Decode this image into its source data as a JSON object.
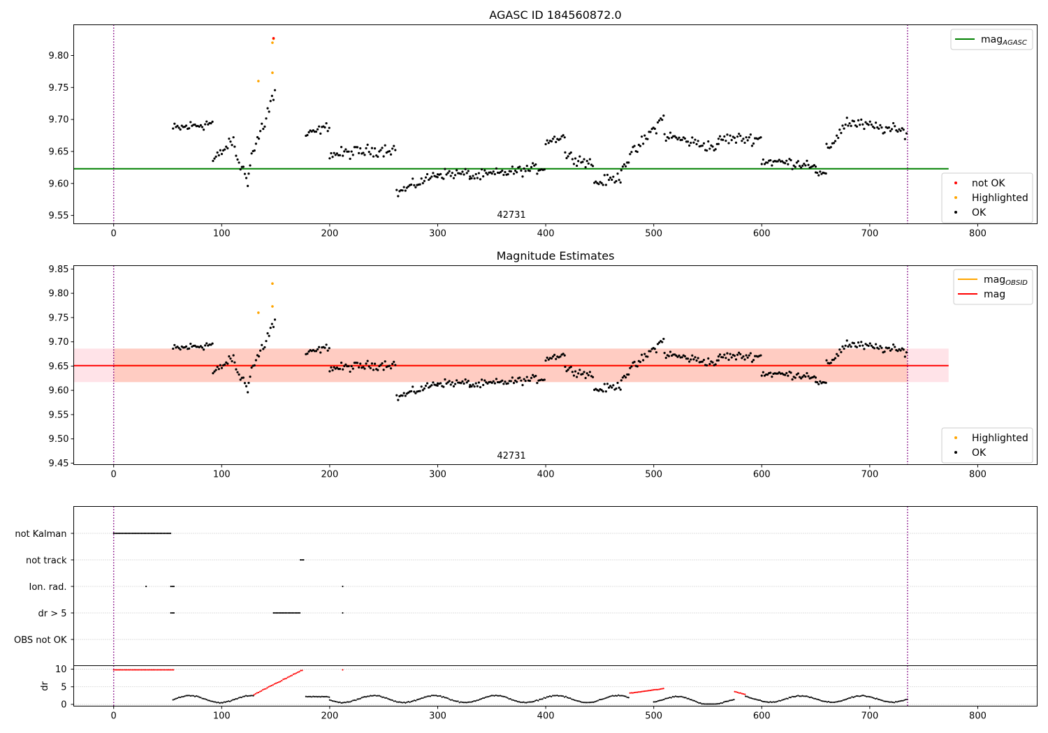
{
  "chart_data": [
    {
      "type": "scatter",
      "title": "AGASC ID 184560872.0",
      "xlim": [
        -37,
        855
      ],
      "ylim": [
        9.537,
        9.848
      ],
      "xticks": [
        0,
        100,
        200,
        300,
        400,
        500,
        600,
        700,
        800
      ],
      "yticks": [
        9.55,
        9.6,
        9.65,
        9.7,
        9.75,
        9.8
      ],
      "obsid_boundaries": [
        0,
        735
      ],
      "obsid_label": {
        "text": "42731",
        "x": 367
      },
      "reference_line": {
        "name": "mag_AGASC",
        "y": 9.623,
        "x": [
          -37,
          773
        ],
        "color": "#008000"
      },
      "legend_top": [
        {
          "label": "mag",
          "subscript": "AGASC",
          "color": "#008000",
          "kind": "line"
        }
      ],
      "legend_bottom": [
        {
          "label": "not OK",
          "color": "#ff0000",
          "kind": "dot"
        },
        {
          "label": "Highlighted",
          "color": "#ffa500",
          "kind": "dot"
        },
        {
          "label": "OK",
          "color": "#000000",
          "kind": "dot"
        }
      ],
      "highlighted_points": [
        [
          134,
          9.76
        ],
        [
          147,
          9.82
        ],
        [
          147,
          9.773
        ],
        [
          148,
          9.826
        ]
      ],
      "not_ok_points": [
        [
          148,
          9.827
        ]
      ],
      "ok_series_segments": [
        {
          "x_start": 55,
          "x_end": 92,
          "y_start": 9.685,
          "y_end": 9.695,
          "noise": 0.014
        },
        {
          "x_start": 92,
          "x_end": 112,
          "y_start": 9.635,
          "y_end": 9.67,
          "noise": 0.012
        },
        {
          "x_start": 112,
          "x_end": 125,
          "y_start": 9.65,
          "y_end": 9.6,
          "noise": 0.02
        },
        {
          "x_start": 125,
          "x_end": 150,
          "y_start": 9.63,
          "y_end": 9.745,
          "noise": 0.025
        },
        {
          "x_start": 178,
          "x_end": 200,
          "y_start": 9.675,
          "y_end": 9.69,
          "noise": 0.01
        },
        {
          "x_start": 200,
          "x_end": 262,
          "y_start": 9.645,
          "y_end": 9.655,
          "noise": 0.014
        },
        {
          "x_start": 262,
          "x_end": 300,
          "y_start": 9.585,
          "y_end": 9.615,
          "noise": 0.012
        },
        {
          "x_start": 300,
          "x_end": 330,
          "y_start": 9.615,
          "y_end": 9.615,
          "noise": 0.012
        },
        {
          "x_start": 330,
          "x_end": 400,
          "y_start": 9.61,
          "y_end": 9.625,
          "noise": 0.012
        },
        {
          "x_start": 400,
          "x_end": 418,
          "y_start": 9.665,
          "y_end": 9.675,
          "noise": 0.01
        },
        {
          "x_start": 418,
          "x_end": 445,
          "y_start": 9.645,
          "y_end": 9.63,
          "noise": 0.012
        },
        {
          "x_start": 445,
          "x_end": 470,
          "y_start": 9.6,
          "y_end": 9.61,
          "noise": 0.012
        },
        {
          "x_start": 470,
          "x_end": 510,
          "y_start": 9.625,
          "y_end": 9.705,
          "noise": 0.015
        },
        {
          "x_start": 510,
          "x_end": 560,
          "y_start": 9.675,
          "y_end": 9.655,
          "noise": 0.013
        },
        {
          "x_start": 560,
          "x_end": 600,
          "y_start": 9.67,
          "y_end": 9.67,
          "noise": 0.013
        },
        {
          "x_start": 600,
          "x_end": 650,
          "y_start": 9.635,
          "y_end": 9.63,
          "noise": 0.012
        },
        {
          "x_start": 650,
          "x_end": 660,
          "y_start": 9.615,
          "y_end": 9.615,
          "noise": 0.006
        },
        {
          "x_start": 660,
          "x_end": 680,
          "y_start": 9.65,
          "y_end": 9.7,
          "noise": 0.015
        },
        {
          "x_start": 680,
          "x_end": 735,
          "y_start": 9.695,
          "y_end": 9.68,
          "noise": 0.013
        }
      ]
    },
    {
      "type": "scatter",
      "title": "Magnitude Estimates",
      "xlim": [
        -37,
        855
      ],
      "ylim": [
        9.447,
        9.857
      ],
      "xticks": [
        0,
        100,
        200,
        300,
        400,
        500,
        600,
        700,
        800
      ],
      "yticks": [
        9.45,
        9.5,
        9.55,
        9.6,
        9.65,
        9.7,
        9.75,
        9.8,
        9.85
      ],
      "obsid_boundaries": [
        0,
        735
      ],
      "obsid_label": {
        "text": "42731",
        "x": 367
      },
      "mag_line": {
        "name": "mag",
        "y": 9.651,
        "x": [
          -37,
          773
        ],
        "color": "#ff0000"
      },
      "mag_band": {
        "y_low": 9.617,
        "y_high": 9.686,
        "x": [
          -37,
          773
        ],
        "color": "#ffc0cb"
      },
      "obsid_band": {
        "y_low": 9.617,
        "y_high": 9.686,
        "x": [
          0,
          735
        ],
        "color": "#ffa07a"
      },
      "obsid_line": {
        "name": "mag_OBSID",
        "y": 9.651,
        "x": [
          0,
          735
        ],
        "color": "#ffa500"
      },
      "legend_top": [
        {
          "label": "mag",
          "subscript": "OBSID",
          "color": "#ffa500",
          "kind": "line"
        },
        {
          "label": "mag",
          "subscript": "",
          "color": "#ff0000",
          "kind": "line"
        }
      ],
      "legend_bottom": [
        {
          "label": "Highlighted",
          "color": "#ffa500",
          "kind": "dot"
        },
        {
          "label": "OK",
          "color": "#000000",
          "kind": "dot"
        }
      ],
      "highlighted_points": [
        [
          134,
          9.76
        ],
        [
          147,
          9.82
        ],
        [
          147,
          9.773
        ]
      ]
    },
    {
      "type": "scatter",
      "title": "",
      "xlim": [
        -37,
        855
      ],
      "flag_categories": [
        "not Kalman",
        "not track",
        "Ion. rad.",
        "dr > 5",
        "OBS not OK"
      ],
      "flag_ranges": [
        {
          "category": "not Kalman",
          "segments": [
            [
              0,
              53
            ]
          ]
        },
        {
          "category": "not track",
          "segments": [
            [
              173,
              177
            ]
          ]
        },
        {
          "category": "Ion. rad.",
          "segments": [
            [
              30,
              30
            ],
            [
              53,
              56
            ],
            [
              212,
              212
            ]
          ]
        },
        {
          "category": "dr > 5",
          "segments": [
            [
              53,
              56
            ],
            [
              148,
              173
            ],
            [
              212,
              212
            ]
          ]
        },
        {
          "category": "OBS not OK",
          "segments": []
        }
      ],
      "obsid_boundaries": [
        0,
        735
      ]
    },
    {
      "type": "scatter",
      "title": "",
      "xlabel": "",
      "ylabel": "dr",
      "xlim": [
        -37,
        855
      ],
      "ylim": [
        -0.5,
        11
      ],
      "xticks": [
        0,
        100,
        200,
        300,
        400,
        500,
        600,
        700,
        800
      ],
      "yticks": [
        0,
        5,
        10
      ],
      "threshold": 5,
      "obsid_boundaries": [
        0,
        735
      ],
      "red_segments": [
        {
          "x_start": 0,
          "x_end": 56,
          "y_start": 9.8,
          "y_end": 9.8,
          "noise": 0
        },
        {
          "x_start": 130,
          "x_end": 175,
          "y_start": 2.8,
          "y_end": 9.8,
          "noise": 0.15
        },
        {
          "x_start": 212,
          "x_end": 212,
          "y_start": 9.8,
          "y_end": 9.8,
          "noise": 0
        },
        {
          "x_start": 478,
          "x_end": 510,
          "y_start": 3.2,
          "y_end": 4.5,
          "noise": 0.1
        },
        {
          "x_start": 575,
          "x_end": 585,
          "y_start": 3.6,
          "y_end": 2.8,
          "noise": 0.1
        }
      ],
      "black_segments": [
        {
          "x_start": 55,
          "x_end": 130,
          "y_start": 1.5,
          "y_end": 1.5,
          "wave": 1.0,
          "noise": 0.2
        },
        {
          "x_start": 178,
          "x_end": 200,
          "y_start": 2.0,
          "y_end": 2.1,
          "wave": 0.2,
          "noise": 0.15
        },
        {
          "x_start": 200,
          "x_end": 478,
          "y_start": 1.5,
          "y_end": 1.5,
          "wave": 1.0,
          "noise": 0.2
        },
        {
          "x_start": 500,
          "x_end": 575,
          "y_start": 1.5,
          "y_end": 0.5,
          "wave": 1.0,
          "noise": 0.2
        },
        {
          "x_start": 585,
          "x_end": 735,
          "y_start": 1.5,
          "y_end": 1.5,
          "wave": 0.9,
          "noise": 0.2
        }
      ]
    }
  ]
}
